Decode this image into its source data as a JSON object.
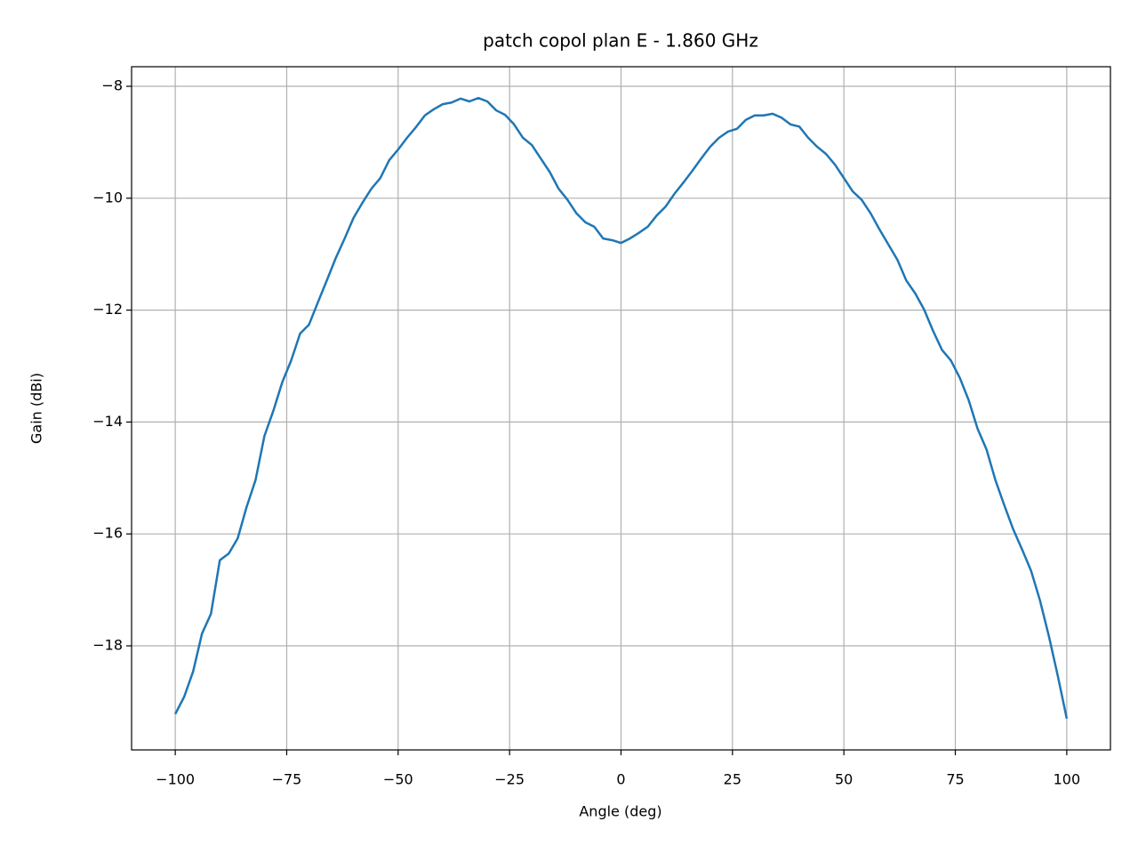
{
  "chart_data": {
    "type": "line",
    "title": "patch copol plan E - 1.860 GHz",
    "x_label": "Angle (deg)",
    "y_label": "Gain (dBi)",
    "x": [
      -100,
      -98,
      -96,
      -94,
      -92,
      -90,
      -88,
      -86,
      -84,
      -82,
      -80,
      -78,
      -76,
      -74,
      -72,
      -70,
      -68,
      -66,
      -64,
      -62,
      -60,
      -58,
      -56,
      -54,
      -52,
      -50,
      -48,
      -46,
      -44,
      -42,
      -40,
      -38,
      -36,
      -34,
      -32,
      -30,
      -28,
      -26,
      -24,
      -22,
      -20,
      -18,
      -16,
      -14,
      -12,
      -10,
      -8,
      -6,
      -4,
      -2,
      0,
      2,
      4,
      6,
      8,
      10,
      12,
      14,
      16,
      18,
      20,
      22,
      24,
      26,
      28,
      30,
      32,
      34,
      36,
      38,
      40,
      42,
      44,
      46,
      48,
      50,
      52,
      54,
      56,
      58,
      60,
      62,
      64,
      66,
      68,
      70,
      72,
      74,
      76,
      78,
      80,
      82,
      84,
      86,
      88,
      90,
      92,
      94,
      96,
      98,
      100
    ],
    "series": [
      {
        "color": "#1f77b4",
        "values": [
          -19.22,
          -18.91,
          -18.46,
          -17.78,
          -17.43,
          -16.47,
          -16.35,
          -16.08,
          -15.52,
          -15.04,
          -14.25,
          -13.8,
          -13.29,
          -12.9,
          -12.42,
          -12.26,
          -11.86,
          -11.47,
          -11.07,
          -10.72,
          -10.35,
          -10.08,
          -9.83,
          -9.64,
          -9.32,
          -9.13,
          -8.92,
          -8.73,
          -8.52,
          -8.41,
          -8.32,
          -8.29,
          -8.22,
          -8.27,
          -8.21,
          -8.27,
          -8.43,
          -8.51,
          -8.68,
          -8.92,
          -9.05,
          -9.29,
          -9.53,
          -9.83,
          -10.03,
          -10.27,
          -10.43,
          -10.51,
          -10.72,
          -10.75,
          -10.8,
          -10.72,
          -10.62,
          -10.51,
          -10.31,
          -10.15,
          -9.92,
          -9.72,
          -9.51,
          -9.29,
          -9.08,
          -8.92,
          -8.81,
          -8.76,
          -8.6,
          -8.52,
          -8.52,
          -8.49,
          -8.56,
          -8.68,
          -8.72,
          -8.92,
          -9.08,
          -9.21,
          -9.4,
          -9.64,
          -9.88,
          -10.03,
          -10.27,
          -10.56,
          -10.83,
          -11.1,
          -11.47,
          -11.7,
          -11.99,
          -12.37,
          -12.71,
          -12.9,
          -13.21,
          -13.61,
          -14.12,
          -14.49,
          -15.04,
          -15.49,
          -15.92,
          -16.28,
          -16.66,
          -17.19,
          -17.83,
          -18.54,
          -19.3
        ]
      }
    ],
    "xlim": [
      -109.8,
      109.8
    ],
    "ylim": [
      -19.86,
      -7.65
    ],
    "xticks": [
      {
        "value": -100,
        "label": "−100"
      },
      {
        "value": -75,
        "label": "−75"
      },
      {
        "value": -50,
        "label": "−50"
      },
      {
        "value": -25,
        "label": "−25"
      },
      0,
      25,
      50,
      75,
      100
    ],
    "yticks": [
      {
        "value": -18,
        "label": "−18"
      },
      {
        "value": -16,
        "label": "−16"
      },
      {
        "value": -14,
        "label": "−14"
      },
      {
        "value": -12,
        "label": "−12"
      },
      {
        "value": -10,
        "label": "−10"
      },
      {
        "value": -8,
        "label": "−8"
      }
    ],
    "grid": true
  }
}
